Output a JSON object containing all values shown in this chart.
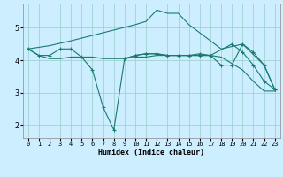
{
  "xlabel": "Humidex (Indice chaleur)",
  "bg_color": "#cceeff",
  "grid_color": "#99cccc",
  "line_color": "#1a7a6e",
  "xlim": [
    -0.5,
    23.5
  ],
  "ylim": [
    1.6,
    5.75
  ],
  "xticks": [
    0,
    1,
    2,
    3,
    4,
    5,
    6,
    7,
    8,
    9,
    10,
    11,
    12,
    13,
    14,
    15,
    16,
    17,
    18,
    19,
    20,
    21,
    22,
    23
  ],
  "yticks": [
    2,
    3,
    4,
    5
  ],
  "series": [
    {
      "x": [
        0,
        1,
        2,
        3,
        4,
        5,
        6,
        7,
        8,
        9,
        10,
        11,
        12,
        13,
        14,
        15,
        16,
        17,
        18,
        19,
        20,
        21,
        22,
        23
      ],
      "y": [
        4.35,
        4.15,
        4.05,
        4.05,
        4.1,
        4.1,
        4.1,
        4.05,
        4.05,
        4.05,
        4.1,
        4.1,
        4.15,
        4.15,
        4.15,
        4.15,
        4.15,
        4.15,
        4.1,
        3.9,
        3.7,
        3.35,
        3.05,
        3.05
      ],
      "markers": false
    },
    {
      "x": [
        0,
        2,
        4,
        10,
        11,
        12,
        13,
        14,
        15,
        16,
        17,
        18,
        20,
        22,
        23
      ],
      "y": [
        4.35,
        4.45,
        4.6,
        5.1,
        5.2,
        5.55,
        5.45,
        5.45,
        5.1,
        4.85,
        4.6,
        4.35,
        4.5,
        3.85,
        3.1
      ],
      "markers": false
    },
    {
      "x": [
        0,
        1,
        2,
        3,
        4,
        5,
        6,
        7,
        8,
        9,
        10,
        11,
        12,
        13,
        14,
        15,
        16,
        17,
        19,
        20,
        21,
        22,
        23
      ],
      "y": [
        4.35,
        4.15,
        4.15,
        4.35,
        4.35,
        4.1,
        3.7,
        2.55,
        1.85,
        4.05,
        4.15,
        4.2,
        4.2,
        4.15,
        4.15,
        4.15,
        4.15,
        4.15,
        4.5,
        4.25,
        3.85,
        3.35,
        3.1
      ],
      "markers": true
    },
    {
      "x": [
        9,
        10,
        11,
        12,
        13,
        14,
        15,
        16,
        17,
        18,
        19,
        20,
        21,
        22,
        23
      ],
      "y": [
        4.05,
        4.15,
        4.2,
        4.2,
        4.15,
        4.15,
        4.15,
        4.2,
        4.15,
        3.85,
        3.85,
        4.5,
        4.25,
        3.85,
        3.1
      ],
      "markers": true
    }
  ]
}
